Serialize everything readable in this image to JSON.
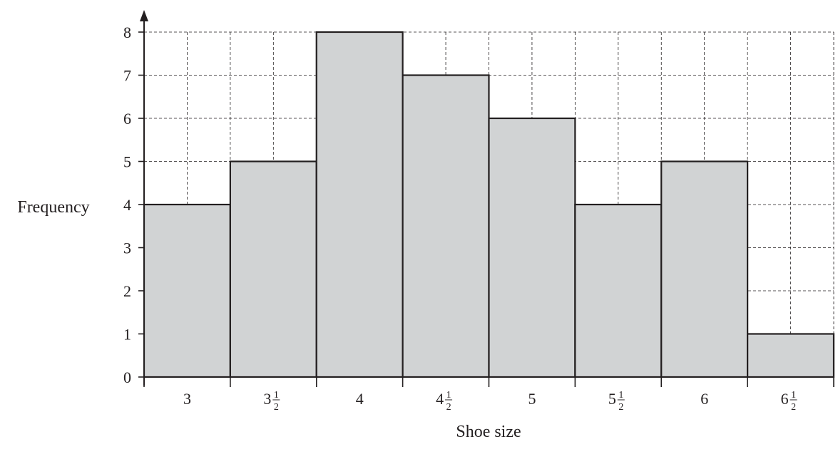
{
  "chart_data": {
    "type": "bar",
    "title": "",
    "xlabel": "Shoe size",
    "ylabel": "Frequency",
    "ylim": [
      0,
      8
    ],
    "yticks": [
      "0",
      "1",
      "2",
      "3",
      "4",
      "5",
      "6",
      "7",
      "8"
    ],
    "categories": [
      "3",
      "3½",
      "4",
      "4½",
      "5",
      "5½",
      "6",
      "6½"
    ],
    "tick_labels": [
      {
        "whole": "3",
        "num": "",
        "den": ""
      },
      {
        "whole": "3",
        "num": "1",
        "den": "2"
      },
      {
        "whole": "4",
        "num": "",
        "den": ""
      },
      {
        "whole": "4",
        "num": "1",
        "den": "2"
      },
      {
        "whole": "5",
        "num": "",
        "den": ""
      },
      {
        "whole": "5",
        "num": "1",
        "den": "2"
      },
      {
        "whole": "6",
        "num": "",
        "den": ""
      },
      {
        "whole": "6",
        "num": "1",
        "den": "2"
      }
    ],
    "values": [
      4,
      5,
      8,
      7,
      6,
      4,
      5,
      1
    ],
    "grid": true,
    "bar_color": "#d1d3d4",
    "edge_color": "#231f20"
  }
}
